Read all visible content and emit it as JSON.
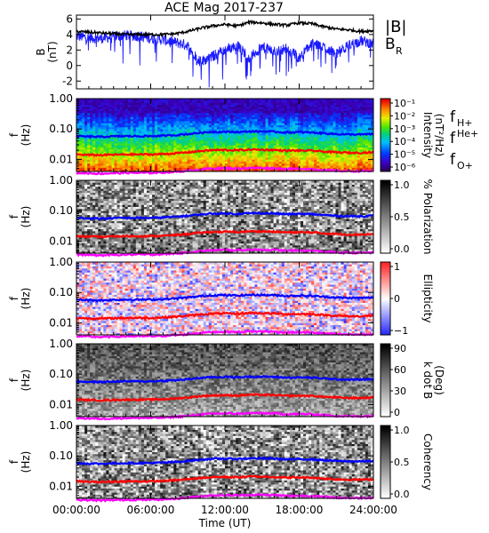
{
  "title": "ACE Mag 2017-237",
  "colors": {
    "btotal": "#000000",
    "br": "#1a1aff",
    "fH": "#0000ff",
    "fHe": "#ff0000",
    "fO": "#ff00ff"
  },
  "chart_data": [
    {
      "type": "line",
      "panel": "field",
      "title": "ACE Mag 2017-237",
      "ylabel": "B\n(nT)",
      "ylim": [
        -3,
        6.5
      ],
      "yticks": [
        -2,
        0,
        2,
        4,
        6
      ],
      "xlim": [
        "00:00:00",
        "24:00:00"
      ],
      "series": [
        {
          "name": "|B|",
          "x": [
            0,
            1,
            2,
            3,
            4,
            5,
            6,
            7,
            8,
            9,
            10,
            11,
            12,
            13,
            14,
            15,
            16,
            17,
            18,
            19,
            20,
            21,
            22,
            23,
            24
          ],
          "values": [
            4.4,
            4.3,
            4.2,
            4.1,
            4.0,
            4.0,
            4.0,
            4.0,
            4.1,
            4.4,
            4.8,
            5.1,
            5.3,
            5.1,
            5.6,
            5.5,
            5.3,
            5.2,
            5.5,
            5.4,
            5.0,
            4.7,
            4.6,
            4.4,
            4.5
          ]
        },
        {
          "name": "B_R",
          "x": [
            0,
            1,
            2,
            3,
            4,
            5,
            6,
            7,
            8,
            9,
            10,
            11,
            12,
            13,
            14,
            15,
            16,
            17,
            18,
            19,
            20,
            21,
            22,
            23,
            24
          ],
          "values": [
            3.8,
            3.6,
            3.5,
            3.7,
            3.9,
            3.8,
            3.5,
            3.3,
            3.0,
            2.6,
            0.5,
            1.2,
            2.0,
            2.6,
            1.0,
            2.4,
            1.8,
            2.2,
            1.0,
            2.8,
            2.4,
            1.5,
            2.6,
            3.2,
            2.8
          ]
        }
      ],
      "legend": [
        {
          "text": "|B|",
          "color": "#000000"
        },
        {
          "text": "B",
          "sub": "R",
          "color": "#1a1aff"
        }
      ]
    },
    {
      "type": "heatmap",
      "panel": "intensity",
      "ylabel": "f\n(Hz)",
      "yscale": "log",
      "ylim": [
        0.004,
        1.0
      ],
      "yticks": [
        "1.00",
        "0.10",
        "0.01"
      ],
      "colorbar": {
        "label": "Intensity\n(nT²/Hz)",
        "ticks": [
          "10⁻¹",
          "10⁻²",
          "10⁻³",
          "10⁻⁴",
          "10⁻⁵",
          "10⁻⁶"
        ],
        "scale": "rainbow"
      },
      "lines": [
        "fH",
        "fHe",
        "fO"
      ],
      "legend": [
        {
          "text": "f",
          "sub": "H+",
          "color": "#0000ff"
        },
        {
          "text": "f",
          "sup": "He+",
          "color": "#ff0000"
        },
        {
          "text": "f",
          "sub": "O+",
          "color": "#ff00ff"
        }
      ]
    },
    {
      "type": "heatmap",
      "panel": "polarization",
      "ylabel": "f\n(Hz)",
      "yscale": "log",
      "ylim": [
        0.004,
        1.0
      ],
      "yticks": [
        "1.00",
        "0.10",
        "0.01"
      ],
      "colorbar": {
        "label": "% Polarization",
        "ticks": [
          "1.0",
          "0.5",
          "0.0"
        ],
        "scale": "gray"
      },
      "lines": [
        "fH",
        "fHe",
        "fO"
      ]
    },
    {
      "type": "heatmap",
      "panel": "ellipticity",
      "ylabel": "f\n(Hz)",
      "yscale": "log",
      "ylim": [
        0.004,
        1.0
      ],
      "yticks": [
        "1.00",
        "0.10",
        "0.01"
      ],
      "colorbar": {
        "label": "Ellipticity",
        "ticks": [
          "1",
          "0",
          "−1"
        ],
        "scale": "bwr"
      },
      "lines": [
        "fH",
        "fHe",
        "fO"
      ]
    },
    {
      "type": "heatmap",
      "panel": "kdotb",
      "ylabel": "f\n(Hz)",
      "yscale": "log",
      "ylim": [
        0.004,
        1.0
      ],
      "yticks": [
        "1.00",
        "0.10",
        "0.01"
      ],
      "colorbar": {
        "label": "k dot B\n(Deg)",
        "ticks": [
          "90",
          "60",
          "30",
          "0"
        ],
        "scale": "gray"
      },
      "lines": [
        "fH",
        "fHe",
        "fO"
      ]
    },
    {
      "type": "heatmap",
      "panel": "coherency",
      "ylabel": "f\n(Hz)",
      "yscale": "log",
      "ylim": [
        0.004,
        1.0
      ],
      "yticks": [
        "1.00",
        "0.10",
        "0.01"
      ],
      "colorbar": {
        "label": "Coherency",
        "ticks": [
          "1.0",
          "0.5",
          "0.0"
        ],
        "scale": "gray"
      },
      "lines": [
        "fH",
        "fHe",
        "fO"
      ]
    }
  ],
  "gyro_lines": {
    "x": [
      0,
      1,
      2,
      3,
      4,
      5,
      6,
      7,
      8,
      9,
      10,
      11,
      12,
      13,
      14,
      15,
      16,
      17,
      18,
      19,
      20,
      21,
      22,
      23,
      24
    ],
    "fH": [
      0.058,
      0.056,
      0.055,
      0.057,
      0.058,
      0.058,
      0.058,
      0.06,
      0.063,
      0.068,
      0.075,
      0.08,
      0.081,
      0.079,
      0.083,
      0.083,
      0.081,
      0.077,
      0.078,
      0.077,
      0.072,
      0.068,
      0.066,
      0.066,
      0.068
    ],
    "fHe": [
      0.0145,
      0.014,
      0.0138,
      0.0142,
      0.0145,
      0.0145,
      0.0145,
      0.015,
      0.0158,
      0.017,
      0.0188,
      0.02,
      0.0203,
      0.0198,
      0.021,
      0.0208,
      0.0203,
      0.0193,
      0.0195,
      0.0193,
      0.018,
      0.017,
      0.0165,
      0.0165,
      0.017
    ],
    "fO": [
      0.0036,
      0.0035,
      0.0034,
      0.0035,
      0.0036,
      0.0036,
      0.0036,
      0.0037,
      0.0039,
      0.0042,
      0.0047,
      0.005,
      0.0051,
      0.005,
      0.0052,
      0.0052,
      0.0051,
      0.0048,
      0.0049,
      0.0048,
      0.0045,
      0.0042,
      0.0041,
      0.0041,
      0.0042
    ]
  },
  "x_axis": {
    "label": "Time (UT)",
    "ticks": [
      "00:00:00",
      "06:00:00",
      "12:00:00",
      "18:00:00",
      "24:00:00"
    ]
  }
}
